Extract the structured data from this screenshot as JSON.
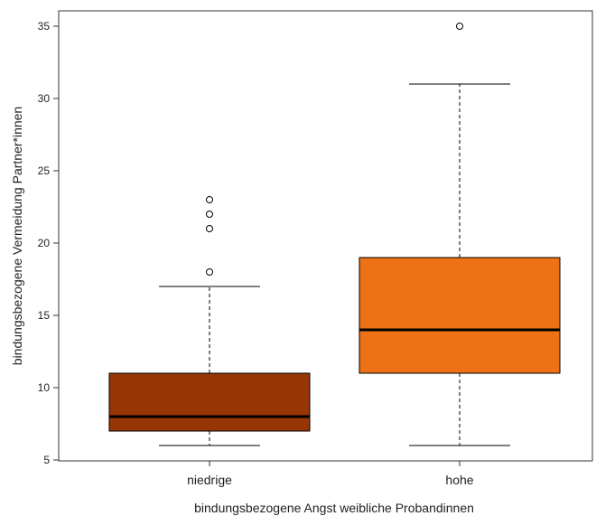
{
  "chart_data": {
    "type": "boxplot",
    "xlabel": "bindungsbezogene Angst weibliche Probandinnen",
    "ylabel": "bindungsbezogene Vermeidung Partner*innen",
    "ylim": [
      5,
      36
    ],
    "yticks": [
      5,
      10,
      15,
      20,
      25,
      30,
      35
    ],
    "categories": [
      "niedrige",
      "hohe"
    ],
    "boxes": [
      {
        "category": "niedrige",
        "color": "#983505",
        "whisker_low": 6,
        "q1": 7,
        "median": 8,
        "q3": 11,
        "whisker_high": 17,
        "outliers": [
          18,
          21,
          22,
          23
        ]
      },
      {
        "category": "hohe",
        "color": "#EC7215",
        "whisker_low": 6,
        "q1": 11,
        "median": 14,
        "q3": 19,
        "whisker_high": 31,
        "outliers": [
          35
        ]
      }
    ],
    "grid": false,
    "legend": "none"
  }
}
